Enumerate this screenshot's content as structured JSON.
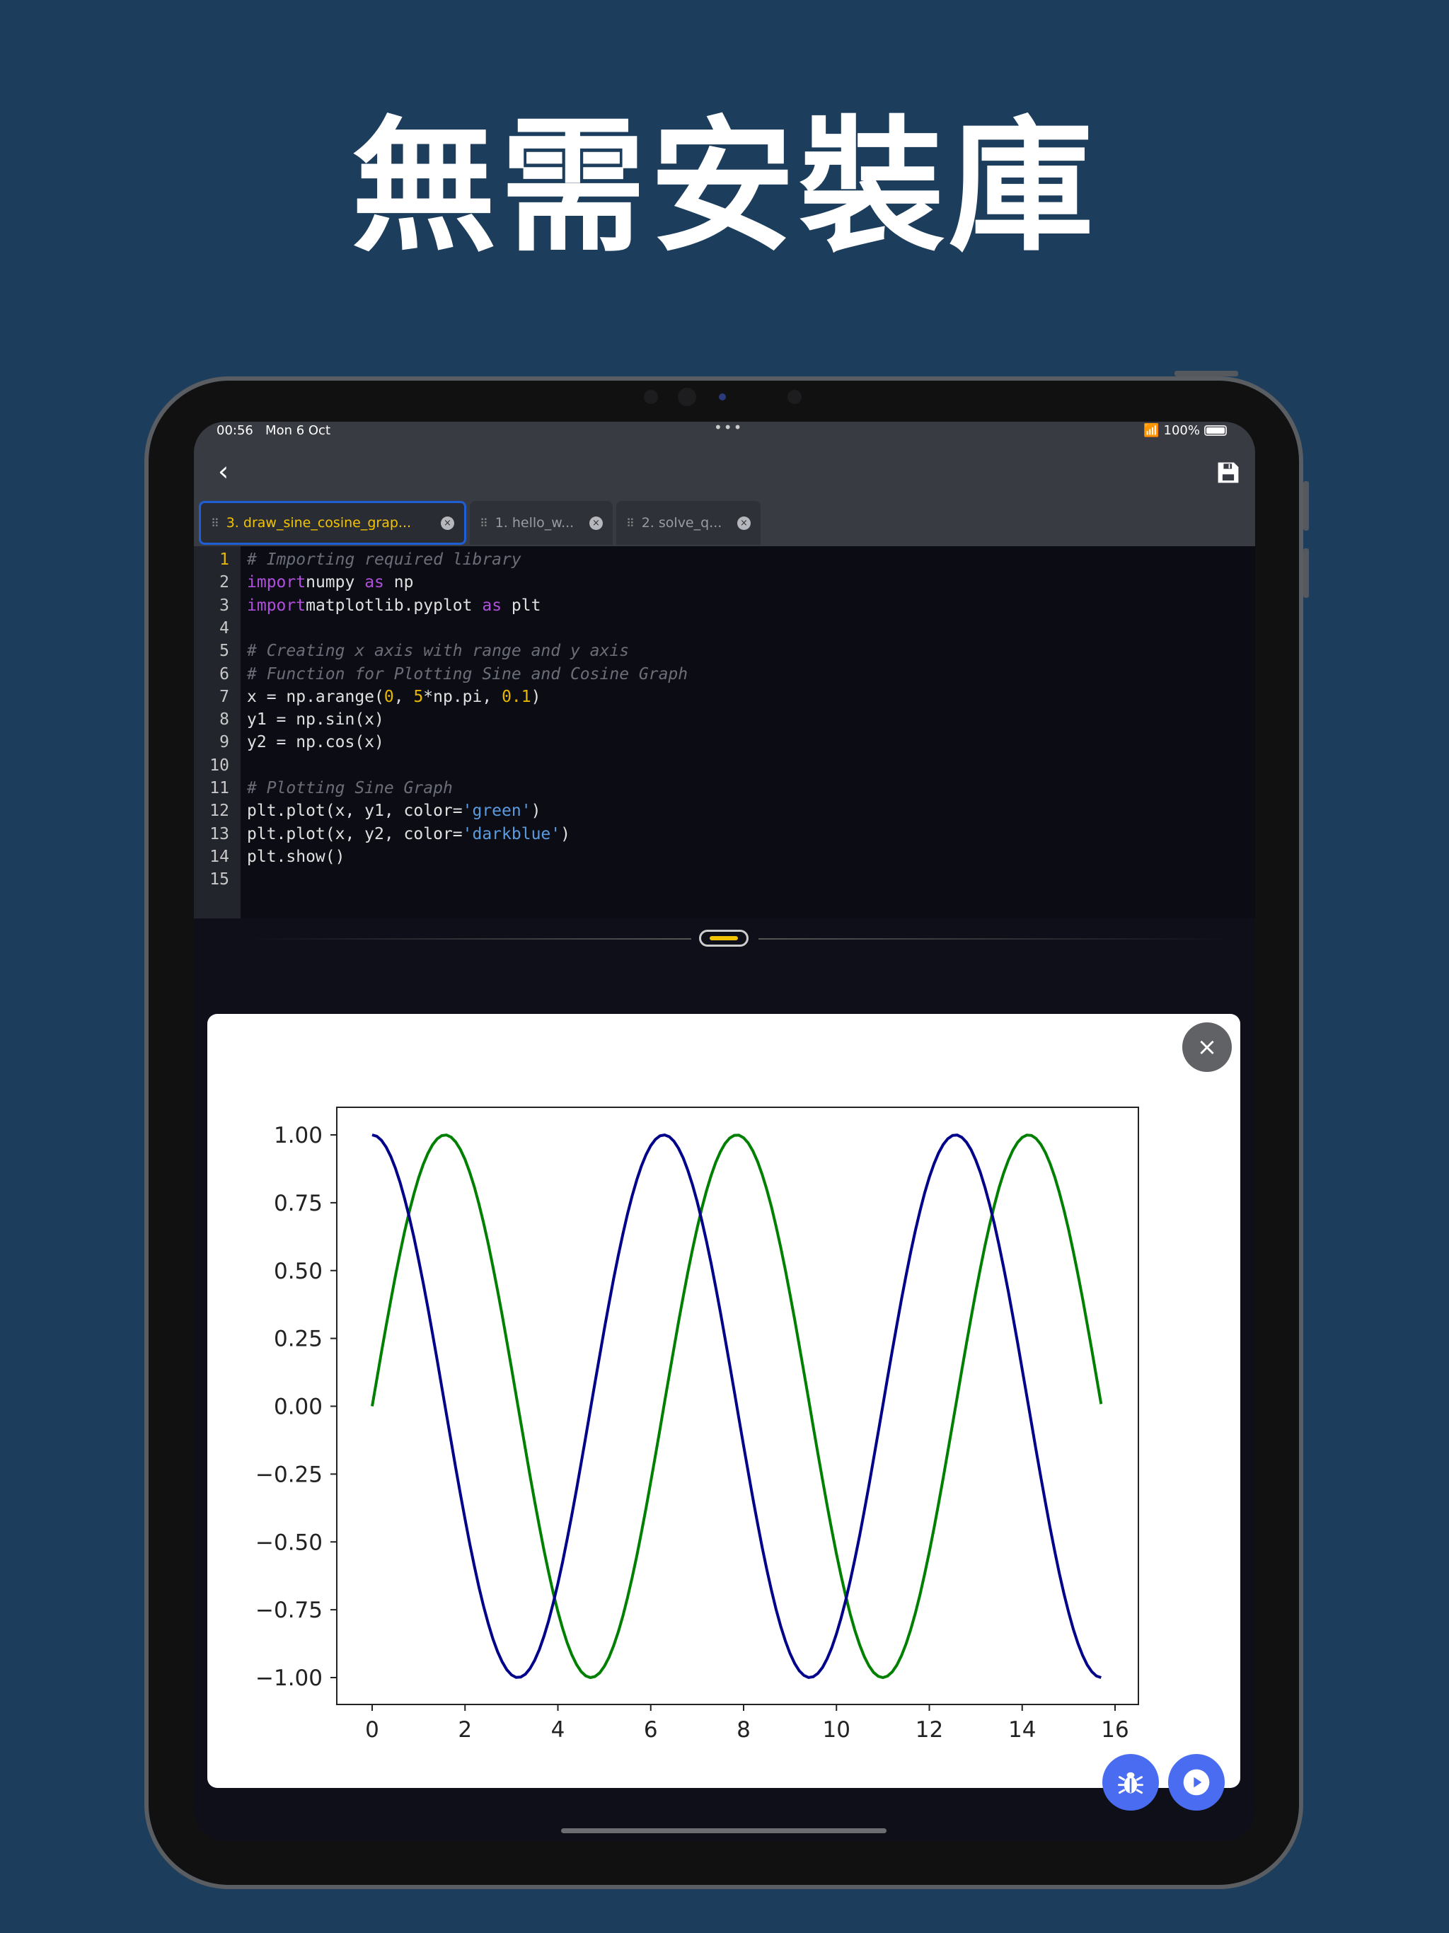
{
  "headline": "無需安裝庫",
  "status": {
    "time": "00:56",
    "date": "Mon 6 Oct",
    "battery": "100%"
  },
  "toolbar": {
    "back_icon": "chevron-left-icon",
    "save_icon": "floppy-disk-icon"
  },
  "tabs": [
    {
      "label": "3. draw_sine_cosine_grap...",
      "active": true
    },
    {
      "label": "1. hello_w...",
      "active": false
    },
    {
      "label": "2. solve_q...",
      "active": false
    }
  ],
  "editor": {
    "current_line": 1,
    "lines": [
      [
        [
          "cm",
          "# Importing required library"
        ]
      ],
      [
        [
          "kw",
          "import"
        ],
        [
          "",
          "numpy "
        ],
        [
          "kw",
          "as"
        ],
        [
          "",
          " np"
        ]
      ],
      [
        [
          "kw",
          "import"
        ],
        [
          "",
          "matplotlib.pyplot "
        ],
        [
          "kw",
          "as"
        ],
        [
          "",
          " plt"
        ]
      ],
      [],
      [
        [
          "cm",
          "# Creating x axis with range and y axis"
        ]
      ],
      [
        [
          "cm",
          "# Function for Plotting Sine and Cosine Graph"
        ]
      ],
      [
        [
          "",
          "x = np.arange("
        ],
        [
          "num",
          "0"
        ],
        [
          "",
          ", "
        ],
        [
          "num",
          "5"
        ],
        [
          "",
          "*np.pi, "
        ],
        [
          "num",
          "0.1"
        ],
        [
          "",
          ")"
        ]
      ],
      [
        [
          "",
          "y1 = np.sin(x)"
        ]
      ],
      [
        [
          "",
          "y2 = np.cos(x)"
        ]
      ],
      [],
      [
        [
          "cm",
          "# Plotting Sine Graph"
        ]
      ],
      [
        [
          "",
          "plt.plot(x, y1, color="
        ],
        [
          "str",
          "'green'"
        ],
        [
          "",
          ")"
        ]
      ],
      [
        [
          "",
          "plt.plot(x, y2, color="
        ],
        [
          "str",
          "'darkblue'"
        ],
        [
          "",
          ")"
        ]
      ],
      [
        [
          "",
          "plt.show()"
        ]
      ],
      []
    ]
  },
  "colors": {
    "accent": "#f2c400",
    "fab": "#4a6cf0",
    "active_tab_border": "#1f5fd6"
  },
  "chart_data": {
    "type": "line",
    "x_start": 0,
    "x_stop": 15.70796,
    "x_step": 0.1,
    "series": [
      {
        "function": "sin",
        "color": "#008000"
      },
      {
        "function": "cos",
        "color": "#00008b"
      }
    ],
    "xlim": [
      -0.785,
      16.5
    ],
    "ylim": [
      -1.1,
      1.1
    ],
    "xticks": [
      "0",
      "2",
      "4",
      "6",
      "8",
      "10",
      "12",
      "14",
      "16"
    ],
    "yticks": [
      "1.00",
      "0.75",
      "0.50",
      "0.25",
      "0.00",
      "−0.25",
      "−0.50",
      "−0.75",
      "−1.00"
    ],
    "grid": false
  },
  "buttons": {
    "close": "×",
    "debug_icon": "bug-icon",
    "run_icon": "play-icon"
  }
}
